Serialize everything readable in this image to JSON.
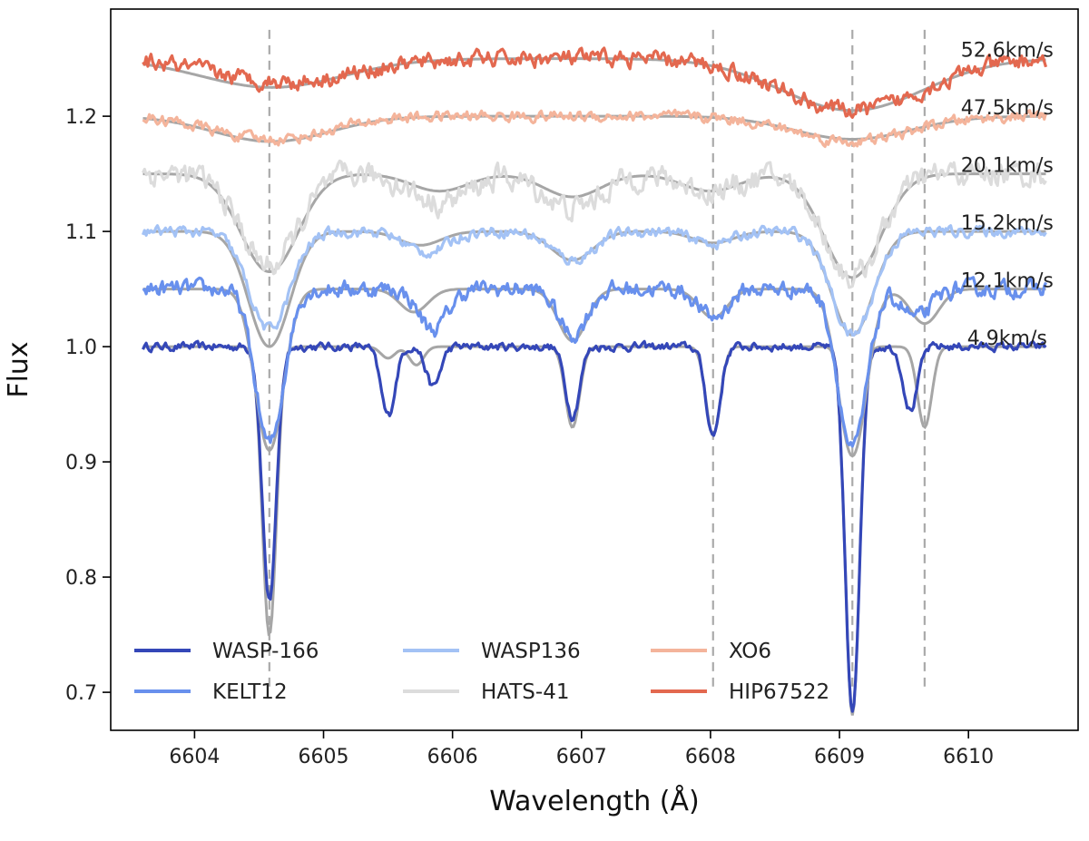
{
  "chart_data": {
    "type": "line",
    "xlabel": "Wavelength (Å)",
    "ylabel": "Flux",
    "xlim": [
      6603.35,
      6610.85
    ],
    "ylim": [
      0.667,
      1.293
    ],
    "xticks": [
      6604,
      6605,
      6606,
      6607,
      6608,
      6609,
      6610
    ],
    "yticks": [
      0.7,
      0.8,
      0.9,
      1.0,
      1.1,
      1.2
    ],
    "grid": false,
    "legend_position": "lower-left",
    "line_markers": [
      6604.58,
      6608.02,
      6609.1,
      6609.66
    ],
    "line_marker_color": "#aaaaaa",
    "model_color": "#a6a6a6",
    "series": [
      {
        "name": "WASP-166",
        "color": "#3447b8",
        "offset": 0.0,
        "vsini_label": "4.9km/s",
        "sigma": 0.055,
        "noise": 0.003,
        "lines": [
          [
            6604.58,
            0.22
          ],
          [
            6605.5,
            0.06
          ],
          [
            6605.85,
            0.035
          ],
          [
            6606.93,
            0.06
          ],
          [
            6608.02,
            0.077
          ],
          [
            6609.1,
            0.32
          ],
          [
            6609.55,
            0.055
          ]
        ],
        "model_lines": [
          [
            6604.58,
            0.25
          ],
          [
            6605.5,
            0.01
          ],
          [
            6605.72,
            0.016
          ],
          [
            6606.93,
            0.07
          ],
          [
            6608.02,
            0.077
          ],
          [
            6609.1,
            0.32
          ],
          [
            6609.66,
            0.07
          ]
        ]
      },
      {
        "name": "KELT12",
        "color": "#6890ed",
        "offset": 0.05,
        "vsini_label": "12.1km/s",
        "sigma": 0.11,
        "noise": 0.006,
        "lines": [
          [
            6604.58,
            0.135
          ],
          [
            6605.85,
            0.035
          ],
          [
            6606.93,
            0.04
          ],
          [
            6608.02,
            0.025
          ],
          [
            6609.1,
            0.14
          ],
          [
            6609.6,
            0.025
          ]
        ],
        "model_lines": [
          [
            6604.58,
            0.14
          ],
          [
            6605.7,
            0.02
          ],
          [
            6606.93,
            0.045
          ],
          [
            6608.02,
            0.025
          ],
          [
            6609.1,
            0.145
          ],
          [
            6609.66,
            0.03
          ]
        ]
      },
      {
        "name": "WASP136",
        "color": "#a3c2f5",
        "offset": 0.1,
        "vsini_label": "15.2km/s",
        "sigma": 0.16,
        "noise": 0.004,
        "lines": [
          [
            6604.58,
            0.085
          ],
          [
            6605.8,
            0.018
          ],
          [
            6606.93,
            0.025
          ],
          [
            6608.02,
            0.01
          ],
          [
            6609.1,
            0.09
          ]
        ],
        "model_lines": [
          [
            6604.58,
            0.1
          ],
          [
            6605.75,
            0.012
          ],
          [
            6606.93,
            0.025
          ],
          [
            6608.02,
            0.01
          ],
          [
            6609.1,
            0.09
          ]
        ]
      },
      {
        "name": "HATS-41",
        "color": "#dcdcdc",
        "offset": 0.15,
        "vsini_label": "20.1km/s",
        "sigma": 0.22,
        "noise": 0.009,
        "lines": [
          [
            6604.58,
            0.08
          ],
          [
            6605.9,
            0.025
          ],
          [
            6606.93,
            0.03
          ],
          [
            6608.0,
            0.015
          ],
          [
            6609.1,
            0.09
          ]
        ],
        "model_lines": [
          [
            6604.58,
            0.085
          ],
          [
            6605.9,
            0.015
          ],
          [
            6606.93,
            0.02
          ],
          [
            6608.0,
            0.015
          ],
          [
            6609.1,
            0.09
          ]
        ]
      },
      {
        "name": "XO6",
        "color": "#f4b49b",
        "offset": 0.2,
        "vsini_label": "47.5km/s",
        "sigma": 0.45,
        "noise": 0.004,
        "lines": [
          [
            6604.6,
            0.02
          ],
          [
            6609.1,
            0.022
          ]
        ],
        "model_lines": [
          [
            6604.6,
            0.022
          ],
          [
            6609.1,
            0.02
          ]
        ]
      },
      {
        "name": "HIP67522",
        "color": "#e3684f",
        "offset": 0.25,
        "vsini_label": "52.6km/s",
        "sigma": 0.55,
        "noise": 0.006,
        "lines": [
          [
            6604.7,
            0.02
          ],
          [
            6609.1,
            0.045
          ]
        ],
        "model_lines": [
          [
            6604.6,
            0.025
          ],
          [
            6609.1,
            0.045
          ]
        ]
      }
    ]
  }
}
